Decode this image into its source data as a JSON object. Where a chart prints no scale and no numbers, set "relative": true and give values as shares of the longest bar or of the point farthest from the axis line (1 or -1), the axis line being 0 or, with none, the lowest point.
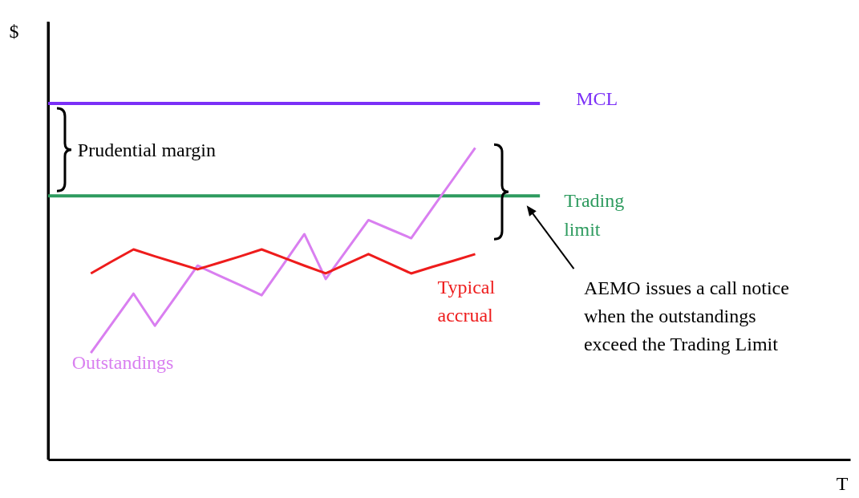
{
  "chart_data": {
    "type": "line",
    "relative": true,
    "categories": [
      null,
      null,
      null,
      null,
      null,
      null,
      null,
      null,
      null,
      null,
      null,
      null,
      null,
      null,
      null,
      null,
      null,
      null,
      null
    ],
    "series": [
      {
        "name": "Outstandings",
        "color": "#d97ff0",
        "values": [
          0.342,
          0.437,
          0.532,
          0.429,
          0.525,
          0.622,
          0.59,
          0.559,
          0.527,
          0.624,
          0.723,
          0.579,
          0.674,
          0.768,
          0.739,
          0.71,
          0.807,
          0.903,
          1
        ]
      },
      {
        "name": "Typical accrual",
        "color": "#ee1c1c",
        "values": [
          0.597,
          0.636,
          0.674,
          0.652,
          0.631,
          0.61,
          0.631,
          0.652,
          0.674,
          0.648,
          0.622,
          0.597,
          0.628,
          0.659,
          0.628,
          0.597,
          0.618,
          0.638,
          0.659
        ]
      }
    ],
    "ref_lines": [
      {
        "axis": "y",
        "value": 1.142,
        "label": "MCL",
        "color": "#7b2ff7"
      },
      {
        "axis": "y",
        "value": 0.846,
        "label": "Trading limit",
        "color": "#2e9b5f"
      }
    ],
    "annotations": [
      "Prudential margin",
      "AEMO issues a call notice when the outstandings exceed the Trading Limit",
      "$",
      "T"
    ],
    "line_style": "solid"
  }
}
